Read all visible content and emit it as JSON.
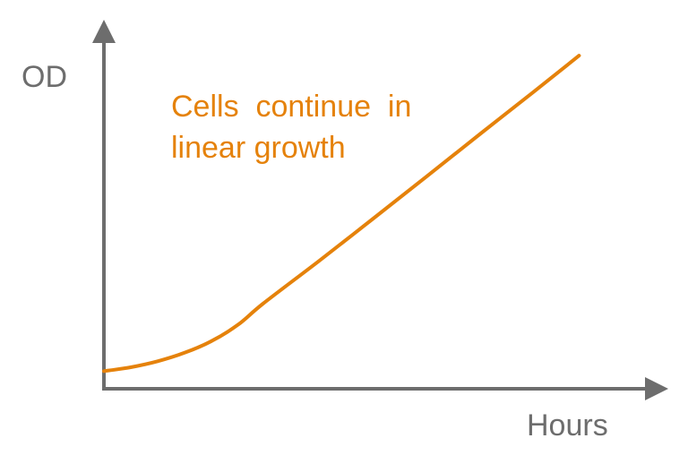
{
  "chart_data": {
    "type": "line",
    "ylabel": "OD",
    "xlabel": "Hours",
    "annotation": [
      "Cells  continue  in",
      "linear growth"
    ],
    "x_ticks_shown": false,
    "y_ticks_shown": false,
    "grid": false,
    "legend": "none",
    "series": [
      {
        "color": "#e5820b",
        "x": [
          0,
          5,
          10,
          15,
          20,
          25,
          29.6,
          40,
          50,
          60,
          70,
          80,
          88.4
        ],
        "y": [
          5,
          6.1,
          7.8,
          10.2,
          13.5,
          18.2,
          24.1,
          36.2,
          48.1,
          60.1,
          72.2,
          84.2,
          94.4
        ]
      }
    ],
    "xlim": [
      0,
      100
    ],
    "ylim": [
      0,
      100
    ]
  },
  "colors": {
    "axis": "#6d6d6d",
    "accent": "#e5820b",
    "background": "#ffffff"
  }
}
